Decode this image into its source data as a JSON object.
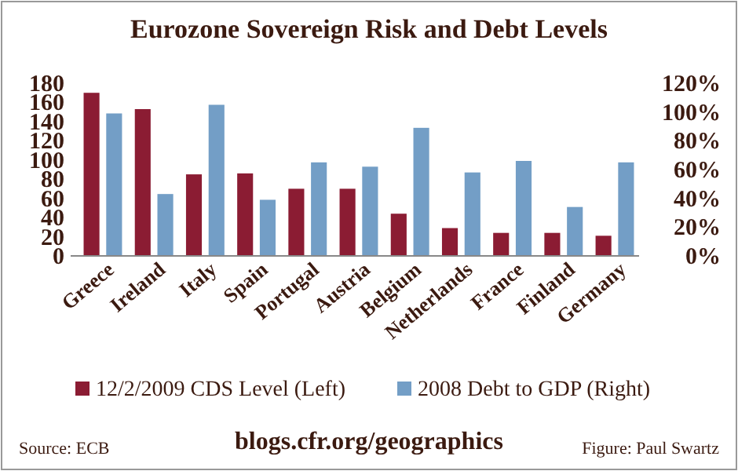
{
  "chart_data": {
    "type": "bar",
    "title": "Eurozone Sovereign Risk and Debt Levels",
    "categories": [
      "Greece",
      "Ireland",
      "Italy",
      "Spain",
      "Portugal",
      "Austria",
      "Belgium",
      "Netherlands",
      "France",
      "Finland",
      "Germany"
    ],
    "series": [
      {
        "name": "12/2/2009 CDS Level (Left)",
        "color": "#8b1c33",
        "values": [
          170,
          153,
          85,
          86,
          70,
          70,
          44,
          29,
          24,
          24,
          21
        ]
      },
      {
        "name": "2008 Debt to GDP (Right)",
        "color": "#739ec6",
        "axis": "y2",
        "values": [
          99,
          43,
          105,
          39,
          65,
          62,
          89,
          58,
          66,
          34,
          65
        ]
      }
    ],
    "ylim": [
      0,
      180
    ],
    "yticks": [
      0,
      20,
      40,
      60,
      80,
      100,
      120,
      140,
      160,
      180
    ],
    "y2lim": [
      0,
      120
    ],
    "y2ticks": [
      {
        "value": 0,
        "label": "0%"
      },
      {
        "value": 20,
        "label": "20%"
      },
      {
        "value": 40,
        "label": "40%"
      },
      {
        "value": 60,
        "label": "60%"
      },
      {
        "value": 80,
        "label": "80%"
      },
      {
        "value": 100,
        "label": "100%"
      },
      {
        "value": 120,
        "label": "120%"
      }
    ],
    "grid": false,
    "legend": "bottom",
    "annotations": [
      "Source: ECB",
      "blogs.cfr.org/geographics",
      "Figure: Paul Swartz"
    ]
  }
}
